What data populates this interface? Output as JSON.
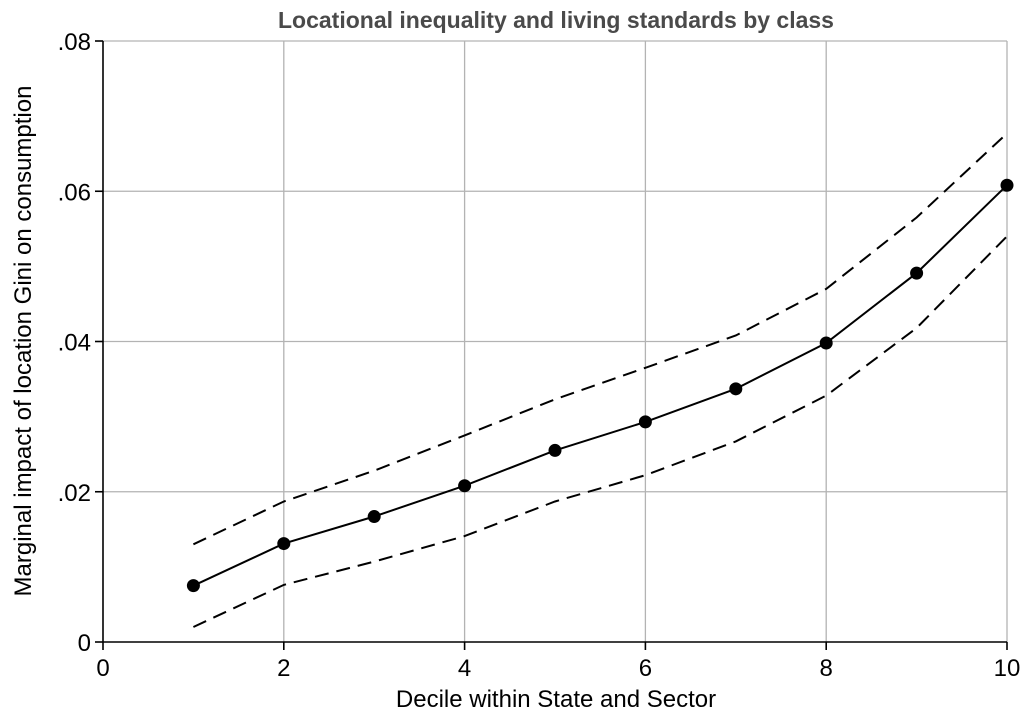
{
  "chart_data": {
    "type": "line",
    "title": "Locational inequality and living standards by class",
    "xlabel": "Decile within State and Sector",
    "ylabel": "Marginal impact of location Gini on consumption",
    "xlim": [
      0,
      10
    ],
    "ylim": [
      0,
      0.08
    ],
    "x_ticks": [
      0,
      2,
      4,
      6,
      8,
      10
    ],
    "x_tick_labels": [
      "0",
      "2",
      "4",
      "6",
      "8",
      "10"
    ],
    "y_ticks": [
      0,
      0.02,
      0.04,
      0.06,
      0.08
    ],
    "y_tick_labels": [
      "0",
      ".02",
      ".04",
      ".06",
      ".08"
    ],
    "grid": true,
    "legend": "none",
    "x": [
      1,
      2,
      3,
      4,
      5,
      6,
      7,
      8,
      9,
      10
    ],
    "series": [
      {
        "role": "estimate",
        "style": "solid-with-markers",
        "color": "#000000",
        "values": [
          0.0075,
          0.0131,
          0.0167,
          0.0208,
          0.0255,
          0.0293,
          0.0337,
          0.0398,
          0.0491,
          0.0608
        ]
      },
      {
        "role": "upper-bound",
        "style": "dashed",
        "color": "#000000",
        "values": [
          0.013,
          0.0187,
          0.0228,
          0.0275,
          0.0323,
          0.0365,
          0.0408,
          0.047,
          0.0565,
          0.0677
        ]
      },
      {
        "role": "lower-bound",
        "style": "dashed",
        "color": "#000000",
        "values": [
          0.002,
          0.0076,
          0.0107,
          0.0141,
          0.0187,
          0.0222,
          0.0267,
          0.0328,
          0.0418,
          0.054
        ]
      }
    ]
  }
}
